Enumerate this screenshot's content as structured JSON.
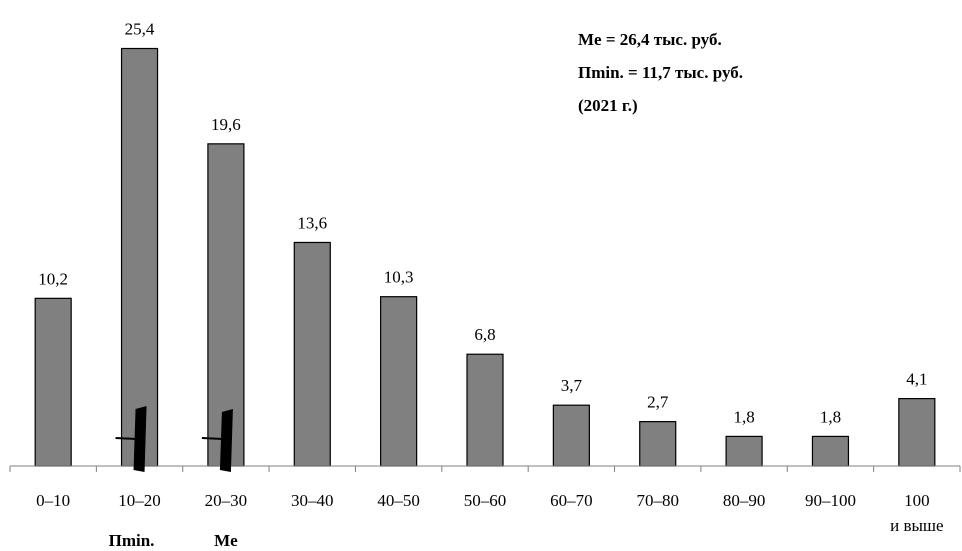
{
  "chart_data": {
    "type": "bar",
    "categories": [
      "0–10",
      "10–20",
      "20–30",
      "30–40",
      "40–50",
      "50–60",
      "60–70",
      "70–80",
      "80–90",
      "90–100",
      "100 и выше"
    ],
    "category_lines": [
      [
        "0–10"
      ],
      [
        "10–20"
      ],
      [
        "20–30"
      ],
      [
        "30–40"
      ],
      [
        "40–50"
      ],
      [
        "50–60"
      ],
      [
        "60–70"
      ],
      [
        "70–80"
      ],
      [
        "80–90"
      ],
      [
        "90–100"
      ],
      [
        "100",
        "и выше"
      ]
    ],
    "values": [
      10.2,
      25.4,
      19.6,
      13.6,
      10.3,
      6.8,
      3.7,
      2.7,
      1.8,
      1.8,
      4.1
    ],
    "value_labels": [
      "10,2",
      "25,4",
      "19,6",
      "13,6",
      "10,3",
      "6,8",
      "3,7",
      "2,7",
      "1,8",
      "1,8",
      "4,1"
    ],
    "ylim": [
      0,
      27
    ],
    "grid": false,
    "legend": "none",
    "bar_color": "#808080",
    "annotations": [
      "Me = 26,4 тыс. руб.",
      "Пmin. = 11,7 тыс. руб.",
      "(2021 г.)"
    ],
    "markers": [
      {
        "label": "Пmin.",
        "value": 11.7,
        "category_index": 1
      },
      {
        "label": "Me",
        "value": 26.4,
        "category_index": 2
      }
    ]
  }
}
